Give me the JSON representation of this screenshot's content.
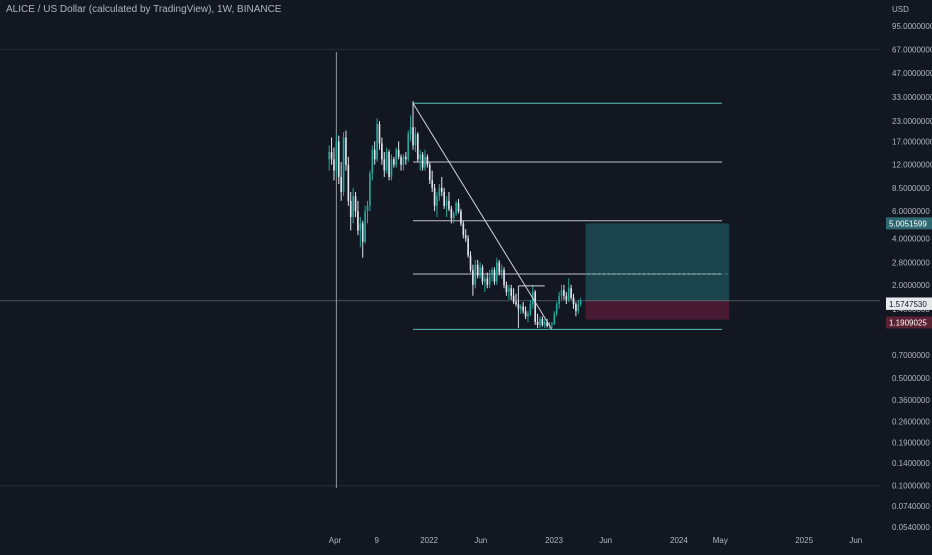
{
  "header": {
    "symbol_title": "ALICE / US Dollar (calculated by TradingView), 1W, BINANCE",
    "currency": "USD"
  },
  "colors": {
    "background": "#131722",
    "up_candle": "#26a69a",
    "down_candle": "#e0e3eb",
    "fib_level": "#d1d4dc",
    "fib_extreme": "#5fd3c9",
    "target_zone": "#1c4b52",
    "stop_zone": "#4a1a33",
    "crosshair": "#9598a1"
  },
  "chart_data": {
    "type": "candlestick",
    "scale": "log",
    "y_tick_labels": [
      "95.0000000",
      "67.0000000",
      "47.0000000",
      "33.0000000",
      "23.0000000",
      "17.0000000",
      "12.0000000",
      "8.5000000",
      "6.0000000",
      "4.0000000",
      "2.8000000",
      "2.0000000",
      "1.4000000",
      "0.7000000",
      "0.5000000",
      "0.3600000",
      "0.2600000",
      "0.1900000",
      "0.1400000",
      "0.1000000",
      "0.0740000",
      "0.0540000"
    ],
    "y_ticks": [
      95,
      67,
      47,
      33,
      23,
      17,
      12,
      8.5,
      6,
      4,
      2.8,
      2.0,
      1.4,
      0.7,
      0.5,
      0.36,
      0.26,
      0.19,
      0.14,
      0.1,
      0.074,
      0.054
    ],
    "x_ticks": [
      {
        "label": "Apr",
        "date": "2021-04-01"
      },
      {
        "label": "9",
        "date": "2021-08-01"
      },
      {
        "label": "2022",
        "date": "2022-01-01"
      },
      {
        "label": "Jun",
        "date": "2022-06-01"
      },
      {
        "label": "2023",
        "date": "2023-01-01"
      },
      {
        "label": "Jun",
        "date": "2023-06-01"
      },
      {
        "label": "2024",
        "date": "2024-01-01"
      },
      {
        "label": "May",
        "date": "2024-05-01"
      },
      {
        "label": "2025",
        "date": "2025-01-01"
      },
      {
        "label": "Jun",
        "date": "2025-06-01"
      }
    ],
    "candles": [
      {
        "t": "2021-03-15",
        "o": 13.0,
        "h": 16.0,
        "l": 11.0,
        "c": 14.5
      },
      {
        "t": "2021-03-22",
        "o": 14.5,
        "h": 18.0,
        "l": 12.0,
        "c": 13.0
      },
      {
        "t": "2021-03-29",
        "o": 13.0,
        "h": 15.5,
        "l": 9.5,
        "c": 11.0
      },
      {
        "t": "2021-04-05",
        "o": 11.0,
        "h": 19.0,
        "l": 10.0,
        "c": 17.0
      },
      {
        "t": "2021-04-12",
        "o": 17.0,
        "h": 18.5,
        "l": 9.0,
        "c": 10.0
      },
      {
        "t": "2021-04-19",
        "o": 10.0,
        "h": 12.5,
        "l": 7.0,
        "c": 8.0
      },
      {
        "t": "2021-04-26",
        "o": 8.0,
        "h": 19.5,
        "l": 7.5,
        "c": 18.0
      },
      {
        "t": "2021-05-03",
        "o": 18.0,
        "h": 20.0,
        "l": 11.0,
        "c": 12.0
      },
      {
        "t": "2021-05-10",
        "o": 12.0,
        "h": 13.5,
        "l": 6.5,
        "c": 7.0
      },
      {
        "t": "2021-05-17",
        "o": 7.0,
        "h": 8.0,
        "l": 4.5,
        "c": 5.5
      },
      {
        "t": "2021-05-24",
        "o": 5.5,
        "h": 8.5,
        "l": 5.0,
        "c": 7.5
      },
      {
        "t": "2021-05-31",
        "o": 7.5,
        "h": 8.0,
        "l": 5.5,
        "c": 6.0
      },
      {
        "t": "2021-06-07",
        "o": 6.0,
        "h": 7.0,
        "l": 4.2,
        "c": 4.5
      },
      {
        "t": "2021-06-14",
        "o": 4.5,
        "h": 5.5,
        "l": 3.5,
        "c": 5.0
      },
      {
        "t": "2021-06-21",
        "o": 5.0,
        "h": 5.2,
        "l": 3.0,
        "c": 3.8
      },
      {
        "t": "2021-06-28",
        "o": 3.8,
        "h": 6.5,
        "l": 3.7,
        "c": 6.0
      },
      {
        "t": "2021-07-05",
        "o": 6.0,
        "h": 7.0,
        "l": 5.0,
        "c": 6.5
      },
      {
        "t": "2021-07-12",
        "o": 6.5,
        "h": 11.0,
        "l": 6.0,
        "c": 10.5
      },
      {
        "t": "2021-07-19",
        "o": 10.5,
        "h": 16.0,
        "l": 9.5,
        "c": 15.0
      },
      {
        "t": "2021-07-26",
        "o": 15.0,
        "h": 17.0,
        "l": 12.0,
        "c": 13.0
      },
      {
        "t": "2021-08-02",
        "o": 13.0,
        "h": 24.0,
        "l": 12.5,
        "c": 22.0
      },
      {
        "t": "2021-08-09",
        "o": 22.0,
        "h": 23.0,
        "l": 15.0,
        "c": 16.5
      },
      {
        "t": "2021-08-16",
        "o": 16.5,
        "h": 18.0,
        "l": 12.0,
        "c": 13.0
      },
      {
        "t": "2021-08-23",
        "o": 13.0,
        "h": 14.5,
        "l": 10.0,
        "c": 11.0
      },
      {
        "t": "2021-08-30",
        "o": 11.0,
        "h": 15.5,
        "l": 10.5,
        "c": 14.5
      },
      {
        "t": "2021-09-06",
        "o": 14.5,
        "h": 15.0,
        "l": 9.5,
        "c": 10.0
      },
      {
        "t": "2021-09-13",
        "o": 10.0,
        "h": 14.0,
        "l": 9.5,
        "c": 13.0
      },
      {
        "t": "2021-09-20",
        "o": 13.0,
        "h": 13.5,
        "l": 11.5,
        "c": 12.0
      },
      {
        "t": "2021-09-27",
        "o": 12.0,
        "h": 15.5,
        "l": 11.5,
        "c": 15.0
      },
      {
        "t": "2021-10-04",
        "o": 15.0,
        "h": 17.0,
        "l": 13.0,
        "c": 13.5
      },
      {
        "t": "2021-10-11",
        "o": 13.5,
        "h": 14.0,
        "l": 11.0,
        "c": 12.0
      },
      {
        "t": "2021-10-18",
        "o": 12.0,
        "h": 14.0,
        "l": 11.0,
        "c": 13.5
      },
      {
        "t": "2021-10-25",
        "o": 13.5,
        "h": 14.5,
        "l": 12.0,
        "c": 13.0
      },
      {
        "t": "2021-11-01",
        "o": 13.0,
        "h": 20.0,
        "l": 12.5,
        "c": 19.0
      },
      {
        "t": "2021-11-08",
        "o": 19.0,
        "h": 25.0,
        "l": 17.0,
        "c": 21.0
      },
      {
        "t": "2021-11-15",
        "o": 21.0,
        "h": 31.0,
        "l": 15.0,
        "c": 16.0
      },
      {
        "t": "2021-11-22",
        "o": 16.0,
        "h": 21.0,
        "l": 14.5,
        "c": 19.0
      },
      {
        "t": "2021-11-29",
        "o": 19.0,
        "h": 19.5,
        "l": 12.5,
        "c": 13.0
      },
      {
        "t": "2021-12-06",
        "o": 13.0,
        "h": 15.0,
        "l": 11.0,
        "c": 14.0
      },
      {
        "t": "2021-12-13",
        "o": 14.0,
        "h": 14.5,
        "l": 11.0,
        "c": 11.5
      },
      {
        "t": "2021-12-20",
        "o": 11.5,
        "h": 15.0,
        "l": 11.0,
        "c": 13.5
      },
      {
        "t": "2021-12-27",
        "o": 13.5,
        "h": 14.0,
        "l": 11.5,
        "c": 12.0
      },
      {
        "t": "2022-01-03",
        "o": 12.0,
        "h": 12.5,
        "l": 9.0,
        "c": 9.5
      },
      {
        "t": "2022-01-10",
        "o": 9.5,
        "h": 11.0,
        "l": 8.0,
        "c": 8.5
      },
      {
        "t": "2022-01-17",
        "o": 8.5,
        "h": 9.0,
        "l": 6.0,
        "c": 6.5
      },
      {
        "t": "2022-01-24",
        "o": 6.5,
        "h": 8.0,
        "l": 5.5,
        "c": 7.5
      },
      {
        "t": "2022-01-31",
        "o": 7.5,
        "h": 9.0,
        "l": 7.0,
        "c": 8.5
      },
      {
        "t": "2022-02-07",
        "o": 8.5,
        "h": 10.0,
        "l": 7.5,
        "c": 8.0
      },
      {
        "t": "2022-02-14",
        "o": 8.0,
        "h": 8.5,
        "l": 6.2,
        "c": 6.5
      },
      {
        "t": "2022-02-21",
        "o": 6.5,
        "h": 7.5,
        "l": 5.5,
        "c": 7.0
      },
      {
        "t": "2022-02-28",
        "o": 7.0,
        "h": 8.0,
        "l": 6.0,
        "c": 6.2
      },
      {
        "t": "2022-03-07",
        "o": 6.2,
        "h": 6.5,
        "l": 5.0,
        "c": 5.4
      },
      {
        "t": "2022-03-14",
        "o": 5.4,
        "h": 6.0,
        "l": 5.0,
        "c": 5.8
      },
      {
        "t": "2022-03-21",
        "o": 5.8,
        "h": 7.0,
        "l": 5.6,
        "c": 6.8
      },
      {
        "t": "2022-03-28",
        "o": 6.8,
        "h": 7.2,
        "l": 5.8,
        "c": 6.0
      },
      {
        "t": "2022-04-04",
        "o": 6.0,
        "h": 6.2,
        "l": 4.8,
        "c": 5.0
      },
      {
        "t": "2022-04-11",
        "o": 5.0,
        "h": 5.2,
        "l": 4.0,
        "c": 4.2
      },
      {
        "t": "2022-04-18",
        "o": 4.2,
        "h": 4.6,
        "l": 3.8,
        "c": 4.0
      },
      {
        "t": "2022-04-25",
        "o": 4.0,
        "h": 4.2,
        "l": 3.0,
        "c": 3.1
      },
      {
        "t": "2022-05-02",
        "o": 3.1,
        "h": 3.3,
        "l": 2.4,
        "c": 2.5
      },
      {
        "t": "2022-05-09",
        "o": 2.5,
        "h": 2.7,
        "l": 1.7,
        "c": 2.0
      },
      {
        "t": "2022-05-16",
        "o": 2.0,
        "h": 2.9,
        "l": 1.9,
        "c": 2.7
      },
      {
        "t": "2022-05-23",
        "o": 2.7,
        "h": 2.9,
        "l": 2.2,
        "c": 2.3
      },
      {
        "t": "2022-05-30",
        "o": 2.3,
        "h": 2.8,
        "l": 2.2,
        "c": 2.6
      },
      {
        "t": "2022-06-06",
        "o": 2.6,
        "h": 2.7,
        "l": 2.0,
        "c": 2.1
      },
      {
        "t": "2022-06-13",
        "o": 2.1,
        "h": 2.3,
        "l": 1.8,
        "c": 2.2
      },
      {
        "t": "2022-06-20",
        "o": 2.2,
        "h": 2.4,
        "l": 1.9,
        "c": 2.0
      },
      {
        "t": "2022-06-27",
        "o": 2.0,
        "h": 2.5,
        "l": 1.9,
        "c": 2.3
      },
      {
        "t": "2022-07-04",
        "o": 2.3,
        "h": 2.6,
        "l": 2.1,
        "c": 2.5
      },
      {
        "t": "2022-07-11",
        "o": 2.5,
        "h": 2.6,
        "l": 2.0,
        "c": 2.1
      },
      {
        "t": "2022-07-18",
        "o": 2.1,
        "h": 3.0,
        "l": 2.0,
        "c": 2.8
      },
      {
        "t": "2022-07-25",
        "o": 2.8,
        "h": 2.9,
        "l": 2.3,
        "c": 2.4
      },
      {
        "t": "2022-08-01",
        "o": 2.4,
        "h": 2.7,
        "l": 2.2,
        "c": 2.5
      },
      {
        "t": "2022-08-08",
        "o": 2.5,
        "h": 2.6,
        "l": 1.9,
        "c": 2.0
      },
      {
        "t": "2022-08-15",
        "o": 2.0,
        "h": 2.1,
        "l": 1.7,
        "c": 1.8
      },
      {
        "t": "2022-08-22",
        "o": 1.8,
        "h": 2.0,
        "l": 1.6,
        "c": 1.9
      },
      {
        "t": "2022-08-29",
        "o": 1.9,
        "h": 2.0,
        "l": 1.6,
        "c": 1.7
      },
      {
        "t": "2022-09-05",
        "o": 1.7,
        "h": 1.9,
        "l": 1.5,
        "c": 1.55
      },
      {
        "t": "2022-09-12",
        "o": 1.55,
        "h": 1.75,
        "l": 1.45,
        "c": 1.5
      },
      {
        "t": "2022-09-19",
        "o": 1.5,
        "h": 1.6,
        "l": 1.35,
        "c": 1.4
      },
      {
        "t": "2022-09-26",
        "o": 1.4,
        "h": 1.5,
        "l": 1.3,
        "c": 1.45
      },
      {
        "t": "2022-10-03",
        "o": 1.45,
        "h": 1.55,
        "l": 1.3,
        "c": 1.35
      },
      {
        "t": "2022-10-10",
        "o": 1.35,
        "h": 1.45,
        "l": 1.2,
        "c": 1.25
      },
      {
        "t": "2022-10-17",
        "o": 1.25,
        "h": 1.35,
        "l": 1.15,
        "c": 1.3
      },
      {
        "t": "2022-10-24",
        "o": 1.3,
        "h": 1.6,
        "l": 1.25,
        "c": 1.5
      },
      {
        "t": "2022-10-31",
        "o": 1.5,
        "h": 2.0,
        "l": 1.4,
        "c": 1.8
      },
      {
        "t": "2022-11-07",
        "o": 1.8,
        "h": 1.85,
        "l": 1.1,
        "c": 1.15
      },
      {
        "t": "2022-11-14",
        "o": 1.15,
        "h": 1.3,
        "l": 1.05,
        "c": 1.1
      },
      {
        "t": "2022-11-21",
        "o": 1.1,
        "h": 1.25,
        "l": 1.05,
        "c": 1.2
      },
      {
        "t": "2022-11-28",
        "o": 1.2,
        "h": 1.25,
        "l": 1.07,
        "c": 1.1
      },
      {
        "t": "2022-12-05",
        "o": 1.1,
        "h": 1.2,
        "l": 1.05,
        "c": 1.15
      },
      {
        "t": "2022-12-12",
        "o": 1.15,
        "h": 1.2,
        "l": 1.06,
        "c": 1.08
      },
      {
        "t": "2022-12-19",
        "o": 1.08,
        "h": 1.15,
        "l": 1.02,
        "c": 1.1
      },
      {
        "t": "2022-12-26",
        "o": 1.1,
        "h": 1.15,
        "l": 1.05,
        "c": 1.12
      },
      {
        "t": "2023-01-02",
        "o": 1.12,
        "h": 1.35,
        "l": 1.1,
        "c": 1.3
      },
      {
        "t": "2023-01-09",
        "o": 1.3,
        "h": 1.55,
        "l": 1.25,
        "c": 1.5
      },
      {
        "t": "2023-01-16",
        "o": 1.5,
        "h": 1.8,
        "l": 1.4,
        "c": 1.7
      },
      {
        "t": "2023-01-23",
        "o": 1.7,
        "h": 2.0,
        "l": 1.6,
        "c": 1.85
      },
      {
        "t": "2023-01-30",
        "o": 1.85,
        "h": 2.0,
        "l": 1.6,
        "c": 1.7
      },
      {
        "t": "2023-02-06",
        "o": 1.7,
        "h": 1.8,
        "l": 1.5,
        "c": 1.6
      },
      {
        "t": "2023-02-13",
        "o": 1.6,
        "h": 2.2,
        "l": 1.55,
        "c": 1.9
      },
      {
        "t": "2023-02-20",
        "o": 1.9,
        "h": 2.0,
        "l": 1.6,
        "c": 1.65
      },
      {
        "t": "2023-02-27",
        "o": 1.65,
        "h": 1.75,
        "l": 1.4,
        "c": 1.5
      },
      {
        "t": "2023-03-06",
        "o": 1.5,
        "h": 1.55,
        "l": 1.25,
        "c": 1.35
      },
      {
        "t": "2023-03-13",
        "o": 1.35,
        "h": 1.6,
        "l": 1.3,
        "c": 1.5
      },
      {
        "t": "2023-03-20",
        "o": 1.5,
        "h": 1.65,
        "l": 1.45,
        "c": 1.57
      }
    ],
    "fib_levels": [
      {
        "price": 30.0,
        "extreme": true
      },
      {
        "price": 12.5
      },
      {
        "price": 5.2
      },
      {
        "price": 2.35
      },
      {
        "price": 1.03,
        "extreme": true
      }
    ],
    "fib_start_date": "2021-11-15",
    "fib_end_date": "2024-05-06",
    "trend_lines": [
      {
        "from": {
          "t": "2021-11-15",
          "p": 30.0
        },
        "to": {
          "t": "2022-12-26",
          "p": 1.03
        }
      },
      {
        "from": {
          "t": "2022-09-19",
          "p": 1.97
        },
        "to": {
          "t": "2022-12-05",
          "p": 1.97
        }
      },
      {
        "from": {
          "t": "2022-09-19",
          "p": 1.97
        },
        "to": {
          "t": "2022-09-19",
          "p": 1.05
        }
      }
    ],
    "position": {
      "start": "2023-04-03",
      "end": "2024-05-27",
      "entry": 1.574753,
      "target": 5.0051599,
      "stop": 1.1909025
    },
    "crosshair": {
      "t": "2021-04-05",
      "p": 1.5761278
    },
    "price_labels": {
      "target": "5.0051599",
      "crosshair": "1.5761278",
      "entry": "1.5747530",
      "stop": "1.1909025"
    }
  }
}
